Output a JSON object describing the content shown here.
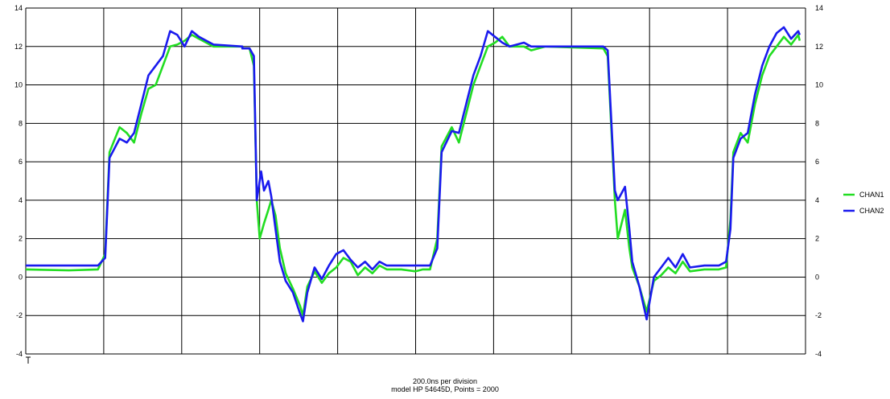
{
  "chart_data": {
    "type": "line",
    "ylim": [
      -4,
      14
    ],
    "y_ticks": [
      -4,
      -2,
      0,
      2,
      4,
      6,
      8,
      10,
      12,
      14
    ],
    "x_divisions": 10,
    "grid": true,
    "legend_position": "right",
    "caption_line1": "200.0ns per division",
    "caption_line2": "model HP 54645D, Points = 2000",
    "series": [
      {
        "name": "CHAN1",
        "color": "#22dd22",
        "points": [
          [
            0,
            0.4
          ],
          [
            0.3,
            0.35
          ],
          [
            0.5,
            0.4
          ],
          [
            0.55,
            1.2
          ],
          [
            0.58,
            6.5
          ],
          [
            0.65,
            7.8
          ],
          [
            0.7,
            7.5
          ],
          [
            0.75,
            7.0
          ],
          [
            0.8,
            8.5
          ],
          [
            0.85,
            9.8
          ],
          [
            0.9,
            10.0
          ],
          [
            0.95,
            11.0
          ],
          [
            1.0,
            12.0
          ],
          [
            1.05,
            12.1
          ],
          [
            1.1,
            12.3
          ],
          [
            1.15,
            12.6
          ],
          [
            1.2,
            12.4
          ],
          [
            1.3,
            12.0
          ],
          [
            1.5,
            12.0
          ],
          [
            1.5,
            11.9
          ],
          [
            1.55,
            11.9
          ],
          [
            1.58,
            11.0
          ],
          [
            1.6,
            4.0
          ],
          [
            1.62,
            2.0
          ],
          [
            1.65,
            2.8
          ],
          [
            1.68,
            3.5
          ],
          [
            1.7,
            4.0
          ],
          [
            1.73,
            3.2
          ],
          [
            1.76,
            1.5
          ],
          [
            1.8,
            0.2
          ],
          [
            1.85,
            -0.6
          ],
          [
            1.9,
            -1.5
          ],
          [
            1.92,
            -2.0
          ],
          [
            1.95,
            -0.5
          ],
          [
            2.0,
            0.3
          ],
          [
            2.05,
            -0.3
          ],
          [
            2.1,
            0.2
          ],
          [
            2.15,
            0.5
          ],
          [
            2.2,
            1.0
          ],
          [
            2.25,
            0.8
          ],
          [
            2.3,
            0.1
          ],
          [
            2.35,
            0.5
          ],
          [
            2.4,
            0.2
          ],
          [
            2.45,
            0.6
          ],
          [
            2.5,
            0.4
          ],
          [
            2.6,
            0.4
          ],
          [
            2.7,
            0.3
          ],
          [
            2.75,
            0.4
          ],
          [
            2.8,
            0.4
          ],
          [
            2.85,
            2.0
          ],
          [
            2.88,
            6.8
          ],
          [
            2.95,
            7.8
          ],
          [
            3.0,
            7.0
          ],
          [
            3.05,
            8.5
          ],
          [
            3.1,
            10.0
          ],
          [
            3.15,
            11.0
          ],
          [
            3.2,
            12.0
          ],
          [
            3.25,
            12.2
          ],
          [
            3.3,
            12.5
          ],
          [
            3.35,
            12.0
          ],
          [
            3.45,
            12.0
          ],
          [
            3.5,
            11.8
          ],
          [
            3.6,
            12.0
          ],
          [
            4.0,
            11.9
          ],
          [
            4.03,
            11.5
          ],
          [
            4.08,
            4.0
          ],
          [
            4.1,
            2.0
          ],
          [
            4.15,
            3.5
          ],
          [
            4.18,
            1.5
          ],
          [
            4.2,
            0.5
          ],
          [
            4.25,
            -0.5
          ],
          [
            4.3,
            -1.8
          ],
          [
            4.35,
            -0.2
          ],
          [
            4.4,
            0.1
          ],
          [
            4.45,
            0.5
          ],
          [
            4.5,
            0.2
          ],
          [
            4.55,
            0.8
          ],
          [
            4.6,
            0.3
          ],
          [
            4.7,
            0.4
          ],
          [
            4.8,
            0.4
          ],
          [
            4.85,
            0.5
          ],
          [
            4.88,
            3.0
          ],
          [
            4.9,
            6.5
          ],
          [
            4.95,
            7.5
          ],
          [
            5.0,
            7.0
          ],
          [
            5.05,
            9.0
          ],
          [
            5.1,
            10.5
          ],
          [
            5.15,
            11.5
          ],
          [
            5.2,
            12.0
          ],
          [
            5.25,
            12.5
          ],
          [
            5.3,
            12.1
          ],
          [
            5.35,
            12.6
          ],
          [
            5.36,
            12.3
          ]
        ]
      },
      {
        "name": "CHAN2",
        "color": "#1a1aee",
        "points": [
          [
            0,
            0.6
          ],
          [
            0.3,
            0.6
          ],
          [
            0.5,
            0.6
          ],
          [
            0.55,
            1.0
          ],
          [
            0.58,
            6.2
          ],
          [
            0.65,
            7.2
          ],
          [
            0.7,
            7.0
          ],
          [
            0.75,
            7.5
          ],
          [
            0.8,
            9.0
          ],
          [
            0.85,
            10.5
          ],
          [
            0.9,
            11.0
          ],
          [
            0.95,
            11.5
          ],
          [
            1.0,
            12.8
          ],
          [
            1.05,
            12.6
          ],
          [
            1.1,
            12.0
          ],
          [
            1.15,
            12.8
          ],
          [
            1.2,
            12.5
          ],
          [
            1.3,
            12.1
          ],
          [
            1.5,
            12.0
          ],
          [
            1.5,
            11.9
          ],
          [
            1.55,
            11.9
          ],
          [
            1.58,
            11.5
          ],
          [
            1.6,
            4.0
          ],
          [
            1.63,
            5.5
          ],
          [
            1.65,
            4.5
          ],
          [
            1.68,
            5.0
          ],
          [
            1.7,
            4.2
          ],
          [
            1.73,
            2.5
          ],
          [
            1.76,
            0.8
          ],
          [
            1.8,
            -0.2
          ],
          [
            1.85,
            -0.8
          ],
          [
            1.9,
            -1.9
          ],
          [
            1.92,
            -2.3
          ],
          [
            1.95,
            -0.8
          ],
          [
            2.0,
            0.5
          ],
          [
            2.05,
            -0.1
          ],
          [
            2.1,
            0.6
          ],
          [
            2.15,
            1.2
          ],
          [
            2.2,
            1.4
          ],
          [
            2.25,
            0.9
          ],
          [
            2.3,
            0.5
          ],
          [
            2.35,
            0.8
          ],
          [
            2.4,
            0.4
          ],
          [
            2.45,
            0.8
          ],
          [
            2.5,
            0.6
          ],
          [
            2.6,
            0.6
          ],
          [
            2.7,
            0.6
          ],
          [
            2.75,
            0.6
          ],
          [
            2.8,
            0.6
          ],
          [
            2.85,
            1.5
          ],
          [
            2.88,
            6.5
          ],
          [
            2.95,
            7.6
          ],
          [
            3.0,
            7.5
          ],
          [
            3.05,
            9.0
          ],
          [
            3.1,
            10.5
          ],
          [
            3.15,
            11.5
          ],
          [
            3.2,
            12.8
          ],
          [
            3.25,
            12.5
          ],
          [
            3.3,
            12.2
          ],
          [
            3.35,
            12.0
          ],
          [
            3.45,
            12.2
          ],
          [
            3.5,
            12.0
          ],
          [
            3.6,
            12.0
          ],
          [
            4.0,
            12.0
          ],
          [
            4.03,
            11.8
          ],
          [
            4.08,
            4.5
          ],
          [
            4.1,
            4.0
          ],
          [
            4.15,
            4.7
          ],
          [
            4.18,
            2.5
          ],
          [
            4.2,
            0.8
          ],
          [
            4.25,
            -0.5
          ],
          [
            4.3,
            -2.2
          ],
          [
            4.35,
            0.0
          ],
          [
            4.4,
            0.5
          ],
          [
            4.45,
            1.0
          ],
          [
            4.5,
            0.5
          ],
          [
            4.55,
            1.2
          ],
          [
            4.6,
            0.5
          ],
          [
            4.7,
            0.6
          ],
          [
            4.8,
            0.6
          ],
          [
            4.85,
            0.8
          ],
          [
            4.88,
            2.5
          ],
          [
            4.9,
            6.2
          ],
          [
            4.95,
            7.2
          ],
          [
            5.0,
            7.5
          ],
          [
            5.05,
            9.5
          ],
          [
            5.1,
            11.0
          ],
          [
            5.15,
            12.0
          ],
          [
            5.2,
            12.7
          ],
          [
            5.25,
            13.0
          ],
          [
            5.3,
            12.4
          ],
          [
            5.35,
            12.8
          ],
          [
            5.36,
            12.6
          ]
        ]
      }
    ]
  }
}
